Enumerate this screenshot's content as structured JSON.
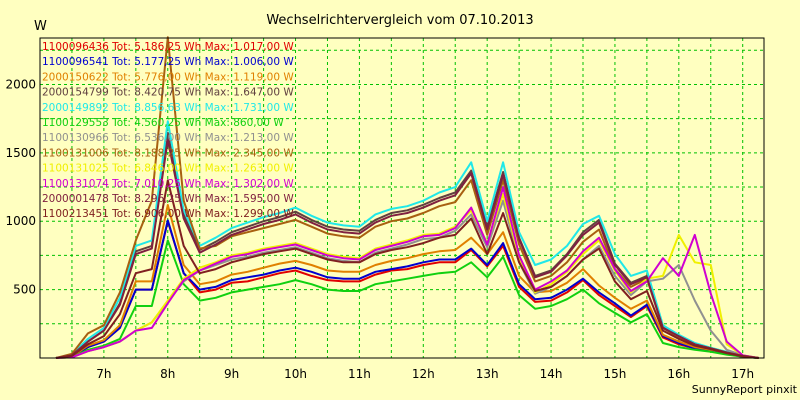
{
  "chart_data": {
    "type": "line",
    "title": "Wechselrichtervergleich vom 07.10.2013",
    "ylabel": "W",
    "xlabel": "",
    "credit": "SunnyReport pinxit",
    "x": [
      "06:15",
      "06:30",
      "06:45",
      "07:00",
      "07:15",
      "07:30",
      "07:45",
      "08:00",
      "08:15",
      "08:30",
      "08:45",
      "09:00",
      "09:15",
      "09:30",
      "09:45",
      "10:00",
      "10:15",
      "10:30",
      "10:45",
      "11:00",
      "11:15",
      "11:30",
      "11:45",
      "12:00",
      "12:15",
      "12:30",
      "12:45",
      "13:00",
      "13:15",
      "13:30",
      "13:45",
      "14:00",
      "14:15",
      "14:30",
      "14:45",
      "15:00",
      "15:15",
      "15:30",
      "15:45",
      "16:00",
      "16:15",
      "16:30",
      "16:45",
      "17:00",
      "17:15"
    ],
    "xticks": [
      "7h",
      "8h",
      "9h",
      "10h",
      "11h",
      "12h",
      "13h",
      "14h",
      "15h",
      "16h",
      "17h"
    ],
    "yticks": [
      500,
      1000,
      1500,
      2000
    ],
    "ylim": [
      0,
      2340
    ],
    "xlim": [
      "06:00",
      "17:20"
    ],
    "grid": true,
    "legend_position": "top-left",
    "series": [
      {
        "name": "1100096436",
        "legend": "1100096436 Tot: 5.186,25 Wh Max: 1.017,00 W",
        "color": "#e00000",
        "values": [
          0,
          10,
          80,
          120,
          220,
          500,
          500,
          1000,
          620,
          480,
          500,
          550,
          560,
          590,
          620,
          640,
          600,
          570,
          560,
          560,
          610,
          640,
          650,
          680,
          700,
          700,
          790,
          670,
          820,
          520,
          410,
          420,
          480,
          570,
          460,
          380,
          300,
          380,
          150,
          100,
          70,
          50,
          30,
          10,
          0
        ]
      },
      {
        "name": "1100096541",
        "legend": "1100096541 Tot: 5.177,25 Wh Max: 1.006,00 W",
        "color": "#0000d0",
        "values": [
          0,
          10,
          80,
          120,
          220,
          500,
          500,
          1006,
          620,
          500,
          520,
          570,
          590,
          610,
          640,
          660,
          630,
          590,
          580,
          580,
          630,
          650,
          670,
          700,
          720,
          720,
          800,
          680,
          840,
          540,
          430,
          440,
          500,
          580,
          480,
          400,
          310,
          390,
          160,
          110,
          70,
          50,
          30,
          10,
          0
        ]
      },
      {
        "name": "2000150622",
        "legend": "2000150622 Tot: 5.776,00 Wh Max: 1.119,00 W",
        "color": "#e08000",
        "values": [
          0,
          10,
          90,
          130,
          240,
          560,
          560,
          1119,
          680,
          540,
          560,
          610,
          630,
          660,
          690,
          710,
          680,
          640,
          630,
          630,
          680,
          710,
          730,
          760,
          780,
          790,
          880,
          760,
          920,
          600,
          480,
          490,
          550,
          650,
          530,
          440,
          360,
          420,
          170,
          120,
          80,
          60,
          40,
          15,
          0
        ]
      },
      {
        "name": "2000154799",
        "legend": "2000154799 Tot: 8.420,75 Wh Max: 1.647,00 W",
        "color": "#604040",
        "values": [
          0,
          20,
          120,
          200,
          400,
          780,
          820,
          1647,
          1050,
          790,
          850,
          920,
          960,
          1000,
          1030,
          1070,
          1010,
          960,
          940,
          930,
          1010,
          1060,
          1080,
          1120,
          1170,
          1210,
          1370,
          960,
          1360,
          880,
          600,
          640,
          760,
          920,
          1010,
          690,
          550,
          600,
          230,
          160,
          100,
          70,
          40,
          15,
          0
        ]
      },
      {
        "name": "2000149892",
        "legend": "2000149892 Tot: 8.856,63 Wh Max: 1.731,00 W",
        "color": "#20e8e8",
        "values": [
          0,
          25,
          140,
          220,
          440,
          820,
          860,
          1731,
          1080,
          820,
          880,
          950,
          990,
          1030,
          1060,
          1100,
          1040,
          990,
          970,
          960,
          1050,
          1090,
          1110,
          1150,
          1210,
          1250,
          1431,
          1000,
          1431,
          920,
          680,
          720,
          820,
          980,
          1040,
          760,
          600,
          640,
          240,
          170,
          110,
          75,
          45,
          15,
          0
        ]
      },
      {
        "name": "1100129553",
        "legend": "1100129553 Tot: 4.560,25 Wh Max: 860,00 W",
        "color": "#10d010",
        "values": [
          0,
          5,
          60,
          90,
          140,
          380,
          380,
          860,
          540,
          420,
          440,
          480,
          500,
          520,
          540,
          570,
          540,
          500,
          490,
          490,
          540,
          560,
          580,
          600,
          620,
          630,
          700,
          590,
          740,
          460,
          360,
          380,
          430,
          500,
          400,
          330,
          260,
          320,
          110,
          80,
          60,
          45,
          25,
          10,
          0
        ]
      },
      {
        "name": "1100130966",
        "legend": "1100130966 Tot: 6.536,00 Wh Max: 1.213,00 W",
        "color": "#909090",
        "values": [
          0,
          5,
          50,
          80,
          120,
          200,
          260,
          410,
          560,
          640,
          680,
          720,
          740,
          770,
          790,
          810,
          770,
          730,
          710,
          700,
          770,
          800,
          830,
          870,
          880,
          930,
          1050,
          810,
          1150,
          700,
          470,
          520,
          600,
          720,
          820,
          600,
          460,
          560,
          580,
          680,
          420,
          200,
          60,
          20,
          0
        ]
      },
      {
        "name": "1100131006",
        "legend": "1100131006 Tot: 8.188,25 Wh Max: 2.345,00 W",
        "color": "#a86010",
        "values": [
          0,
          30,
          180,
          240,
          480,
          860,
          1150,
          2345,
          1150,
          800,
          820,
          890,
          920,
          950,
          980,
          1010,
          960,
          910,
          890,
          880,
          960,
          1000,
          1020,
          1060,
          1110,
          1140,
          1300,
          900,
          1300,
          830,
          560,
          600,
          700,
          850,
          940,
          650,
          520,
          580,
          220,
          150,
          100,
          70,
          40,
          15,
          0
        ]
      },
      {
        "name": "1100131025",
        "legend": "1100131025 Tot: 6.846,00 Wh Max: 1.263,00 W",
        "color": "#f0f000",
        "values": [
          0,
          5,
          50,
          80,
          120,
          200,
          260,
          420,
          580,
          660,
          700,
          750,
          770,
          800,
          820,
          840,
          800,
          760,
          740,
          730,
          800,
          830,
          860,
          900,
          910,
          960,
          1080,
          840,
          1200,
          730,
          480,
          540,
          630,
          760,
          860,
          640,
          480,
          580,
          600,
          900,
          700,
          680,
          100,
          20,
          0
        ]
      },
      {
        "name": "1100131074",
        "legend": "1100131074 Tot: 7.010,25 Wh Max: 1.302,00 W",
        "color": "#d000d0",
        "values": [
          0,
          5,
          50,
          80,
          120,
          200,
          220,
          400,
          570,
          640,
          690,
          740,
          760,
          790,
          810,
          830,
          790,
          750,
          730,
          720,
          790,
          820,
          850,
          890,
          900,
          950,
          1100,
          830,
          1250,
          750,
          500,
          560,
          640,
          780,
          880,
          650,
          490,
          560,
          730,
          600,
          900,
          470,
          120,
          20,
          0
        ]
      },
      {
        "name": "2000001478",
        "legend": "2000001478 Tot: 8.296,25 Wh Max: 1.595,00 W",
        "color": "#802040",
        "values": [
          0,
          20,
          120,
          200,
          390,
          760,
          800,
          1595,
          1020,
          770,
          830,
          900,
          940,
          980,
          1010,
          1050,
          990,
          940,
          920,
          910,
          990,
          1040,
          1060,
          1100,
          1150,
          1190,
          1350,
          940,
          1340,
          870,
          590,
          630,
          750,
          900,
          990,
          680,
          540,
          590,
          220,
          160,
          100,
          70,
          40,
          15,
          0
        ]
      },
      {
        "name": "1100213451",
        "legend": "1100213451 Tot: 6.906,00 Wh Max: 1.299,00 W",
        "color": "#802020",
        "values": [
          0,
          15,
          100,
          160,
          320,
          620,
          650,
          1299,
          820,
          620,
          650,
          700,
          730,
          760,
          780,
          800,
          760,
          720,
          700,
          700,
          760,
          790,
          810,
          840,
          880,
          900,
          1020,
          760,
          1060,
          700,
          490,
          520,
          600,
          720,
          800,
          560,
          430,
          490,
          200,
          140,
          90,
          65,
          35,
          12,
          0
        ]
      }
    ]
  }
}
